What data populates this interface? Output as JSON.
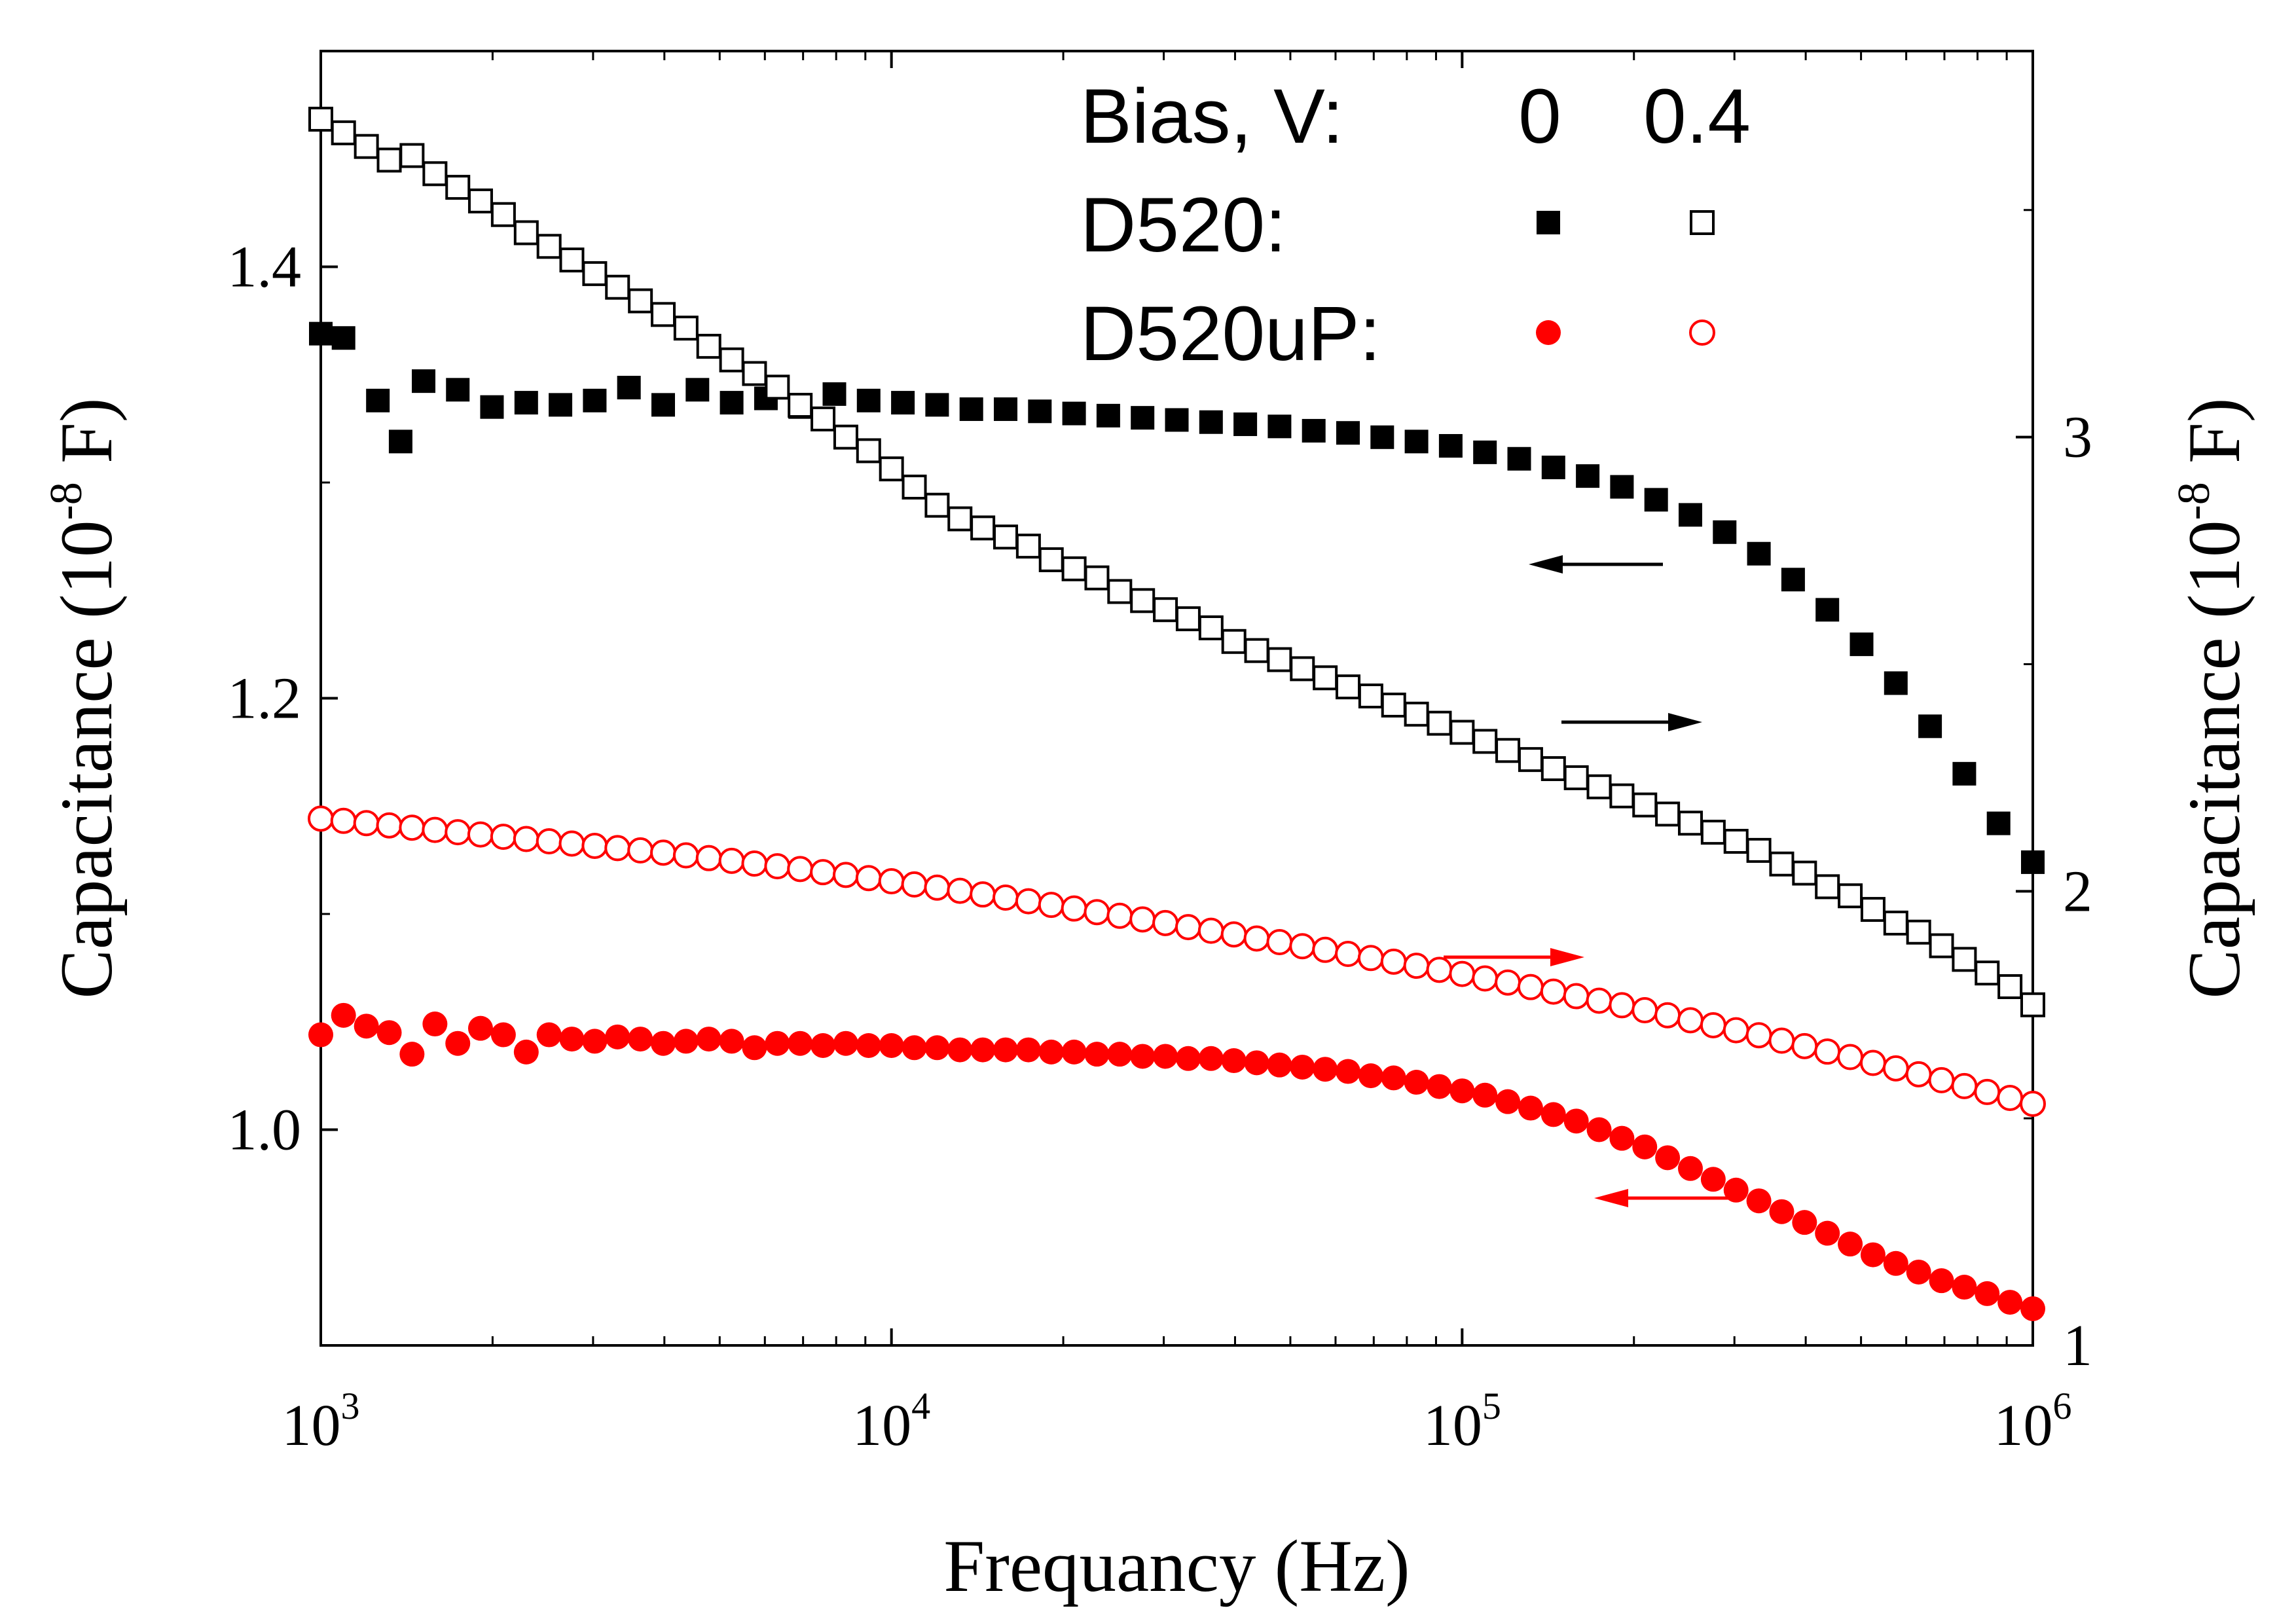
{
  "chart_data": {
    "type": "scatter",
    "title": "",
    "xlabel": "Frequancy (Hz)",
    "ylabel_left": "Capacitance (10-8 F)",
    "ylabel_right": "Capacitance (10-8 F)",
    "x_scale": "log",
    "xlim": [
      1000,
      1000000
    ],
    "ylim_left": [
      0.9,
      1.5
    ],
    "ylim_right": [
      1.0,
      3.85
    ],
    "x_ticks": [
      {
        "base": "10",
        "exp": "3",
        "value": 1000
      },
      {
        "base": "10",
        "exp": "4",
        "value": 10000
      },
      {
        "base": "10",
        "exp": "5",
        "value": 100000
      },
      {
        "base": "10",
        "exp": "6",
        "value": 1000000
      }
    ],
    "y_left_ticks": [
      "1.0",
      "1.2",
      "1.4"
    ],
    "y_left_values": [
      1.0,
      1.2,
      1.4
    ],
    "y_right_ticks": [
      "1",
      "2",
      "3"
    ],
    "y_right_values": [
      1,
      2,
      3
    ],
    "grid": false,
    "legend": {
      "placement": "top-right",
      "header_label": "Bias, V:",
      "bias_values": [
        "0",
        "0.4"
      ],
      "rows": [
        {
          "label": "D520:",
          "marker": "square",
          "color": "#000000"
        },
        {
          "label": "D520uP:",
          "marker": "circle",
          "color": "#ff0000"
        }
      ]
    },
    "annotations": [
      {
        "type": "arrow",
        "direction": "left",
        "color": "#000000",
        "meaning": "D520 at 0 V uses left axis"
      },
      {
        "type": "arrow",
        "direction": "right",
        "color": "#000000",
        "meaning": "D520 at 0.4 V uses right axis"
      },
      {
        "type": "arrow",
        "direction": "right",
        "color": "#ff0000",
        "meaning": "D520uP at 0.4 V uses right axis"
      },
      {
        "type": "arrow",
        "direction": "left",
        "color": "#ff0000",
        "meaning": "D520uP at 0 V uses left axis"
      }
    ],
    "series": [
      {
        "sample": "D520",
        "bias": "0",
        "axis": "left",
        "marker": "square",
        "filled": true,
        "color": "#000000",
        "x": [
          1000,
          1096,
          1259,
          1380,
          1514,
          1738,
          1995,
          2291,
          2630,
          3020,
          3467,
          3981,
          4571,
          5248,
          6026,
          6918,
          7943,
          9120,
          10471,
          12023,
          13804,
          15849,
          18197,
          20893,
          23988,
          27542,
          31623,
          36308,
          41687,
          47863,
          54954,
          63096,
          72444,
          83176,
          95499,
          109648,
          125893,
          144544,
          165959,
          190546,
          218776,
          251189,
          288403,
          331131,
          380189,
          436516,
          501187,
          575440,
          660693,
          758578,
          870964,
          1000000
        ],
        "y": [
          1.369,
          1.367,
          1.338,
          1.319,
          1.347,
          1.343,
          1.335,
          1.337,
          1.336,
          1.338,
          1.344,
          1.336,
          1.343,
          1.337,
          1.339,
          1.335,
          1.341,
          1.338,
          1.337,
          1.336,
          1.334,
          1.334,
          1.333,
          1.332,
          1.331,
          1.33,
          1.329,
          1.328,
          1.327,
          1.326,
          1.324,
          1.323,
          1.321,
          1.319,
          1.317,
          1.314,
          1.311,
          1.307,
          1.303,
          1.298,
          1.292,
          1.285,
          1.277,
          1.267,
          1.255,
          1.241,
          1.225,
          1.207,
          1.187,
          1.165,
          1.142,
          1.124
        ]
      },
      {
        "sample": "D520",
        "bias": "0.4",
        "axis": "right",
        "marker": "square",
        "filled": false,
        "color": "#000000",
        "x": [
          1000,
          1096,
          1202,
          1318,
          1445,
          1585,
          1738,
          1905,
          2089,
          2291,
          2512,
          2754,
          3020,
          3311,
          3631,
          3981,
          4365,
          4786,
          5248,
          5754,
          6310,
          6918,
          7586,
          8318,
          9120,
          10000,
          10965,
          12023,
          13183,
          14454,
          15849,
          17378,
          19055,
          20893,
          22909,
          25119,
          27542,
          30200,
          33113,
          36308,
          39811,
          43652,
          47863,
          52481,
          57544,
          63096,
          69183,
          75858,
          83176,
          91201,
          100000,
          109648,
          120226,
          131826,
          144544,
          158489,
          173780,
          190546,
          208930,
          229087,
          251189,
          275423,
          301995,
          331131,
          363078,
          398107,
          436516,
          478630,
          524807,
          575440,
          630957,
          691831,
          758578,
          831764,
          912011,
          1000000
        ],
        "y": [
          3.7,
          3.67,
          3.64,
          3.61,
          3.62,
          3.58,
          3.55,
          3.52,
          3.49,
          3.45,
          3.42,
          3.39,
          3.36,
          3.33,
          3.3,
          3.27,
          3.24,
          3.2,
          3.17,
          3.14,
          3.11,
          3.07,
          3.04,
          3.0,
          2.97,
          2.93,
          2.89,
          2.85,
          2.82,
          2.8,
          2.78,
          2.76,
          2.73,
          2.71,
          2.69,
          2.66,
          2.64,
          2.62,
          2.6,
          2.58,
          2.55,
          2.53,
          2.51,
          2.49,
          2.47,
          2.45,
          2.43,
          2.41,
          2.39,
          2.37,
          2.35,
          2.33,
          2.31,
          2.29,
          2.27,
          2.25,
          2.23,
          2.21,
          2.19,
          2.17,
          2.15,
          2.13,
          2.11,
          2.09,
          2.06,
          2.04,
          2.01,
          1.99,
          1.96,
          1.93,
          1.91,
          1.88,
          1.85,
          1.82,
          1.79,
          1.75
        ]
      },
      {
        "sample": "D520uP",
        "bias": "0",
        "axis": "left",
        "marker": "circle",
        "filled": true,
        "color": "#ff0000",
        "x": [
          1000,
          1096,
          1202,
          1318,
          1445,
          1585,
          1738,
          1905,
          2089,
          2291,
          2512,
          2754,
          3020,
          3311,
          3631,
          3981,
          4365,
          4786,
          5248,
          5754,
          6310,
          6918,
          7586,
          8318,
          9120,
          10000,
          10965,
          12023,
          13183,
          14454,
          15849,
          17378,
          19055,
          20893,
          22909,
          25119,
          27542,
          30200,
          33113,
          36308,
          39811,
          43652,
          47863,
          52481,
          57544,
          63096,
          69183,
          75858,
          83176,
          91201,
          100000,
          109648,
          120226,
          131826,
          144544,
          158489,
          173780,
          190546,
          208930,
          229087,
          251189,
          275423,
          301995,
          331131,
          363078,
          398107,
          436516,
          478630,
          524807,
          575440,
          630957,
          691831,
          758578,
          831764,
          912011,
          1000000
        ],
        "y": [
          1.044,
          1.053,
          1.048,
          1.045,
          1.035,
          1.049,
          1.04,
          1.047,
          1.044,
          1.036,
          1.044,
          1.042,
          1.041,
          1.043,
          1.042,
          1.04,
          1.041,
          1.042,
          1.041,
          1.038,
          1.04,
          1.04,
          1.039,
          1.04,
          1.039,
          1.039,
          1.038,
          1.038,
          1.037,
          1.037,
          1.037,
          1.037,
          1.036,
          1.036,
          1.035,
          1.035,
          1.034,
          1.034,
          1.033,
          1.033,
          1.032,
          1.031,
          1.03,
          1.029,
          1.028,
          1.027,
          1.025,
          1.024,
          1.022,
          1.02,
          1.018,
          1.016,
          1.013,
          1.01,
          1.007,
          1.004,
          1.0,
          0.996,
          0.992,
          0.987,
          0.982,
          0.977,
          0.972,
          0.967,
          0.962,
          0.957,
          0.952,
          0.947,
          0.942,
          0.938,
          0.934,
          0.93,
          0.927,
          0.924,
          0.92,
          0.917
        ]
      },
      {
        "sample": "D520uP",
        "bias": "0.4",
        "axis": "right",
        "marker": "circle",
        "filled": false,
        "color": "#ff0000",
        "x": [
          1000,
          1096,
          1202,
          1318,
          1445,
          1585,
          1738,
          1905,
          2089,
          2291,
          2512,
          2754,
          3020,
          3311,
          3631,
          3981,
          4365,
          4786,
          5248,
          5754,
          6310,
          6918,
          7586,
          8318,
          9120,
          10000,
          10965,
          12023,
          13183,
          14454,
          15849,
          17378,
          19055,
          20893,
          22909,
          25119,
          27542,
          30200,
          33113,
          36308,
          39811,
          43652,
          47863,
          52481,
          57544,
          63096,
          69183,
          75858,
          83176,
          91201,
          100000,
          109648,
          120226,
          131826,
          144544,
          158489,
          173780,
          190546,
          208930,
          229087,
          251189,
          275423,
          301995,
          331131,
          363078,
          398107,
          436516,
          478630,
          524807,
          575440,
          630957,
          691831,
          758578,
          831764,
          912011,
          1000000
        ],
        "y": [
          2.16,
          2.155,
          2.15,
          2.145,
          2.14,
          2.135,
          2.13,
          2.125,
          2.12,
          2.115,
          2.11,
          2.105,
          2.1,
          2.095,
          2.09,
          2.085,
          2.079,
          2.073,
          2.067,
          2.061,
          2.055,
          2.049,
          2.042,
          2.036,
          2.029,
          2.022,
          2.015,
          2.008,
          2.001,
          1.993,
          1.986,
          1.978,
          1.97,
          1.962,
          1.954,
          1.946,
          1.938,
          1.93,
          1.921,
          1.913,
          1.905,
          1.896,
          1.888,
          1.879,
          1.871,
          1.862,
          1.853,
          1.845,
          1.836,
          1.827,
          1.818,
          1.808,
          1.799,
          1.789,
          1.779,
          1.769,
          1.759,
          1.749,
          1.738,
          1.727,
          1.716,
          1.705,
          1.694,
          1.683,
          1.671,
          1.659,
          1.647,
          1.635,
          1.622,
          1.61,
          1.597,
          1.584,
          1.571,
          1.558,
          1.545,
          1.532
        ]
      }
    ]
  }
}
